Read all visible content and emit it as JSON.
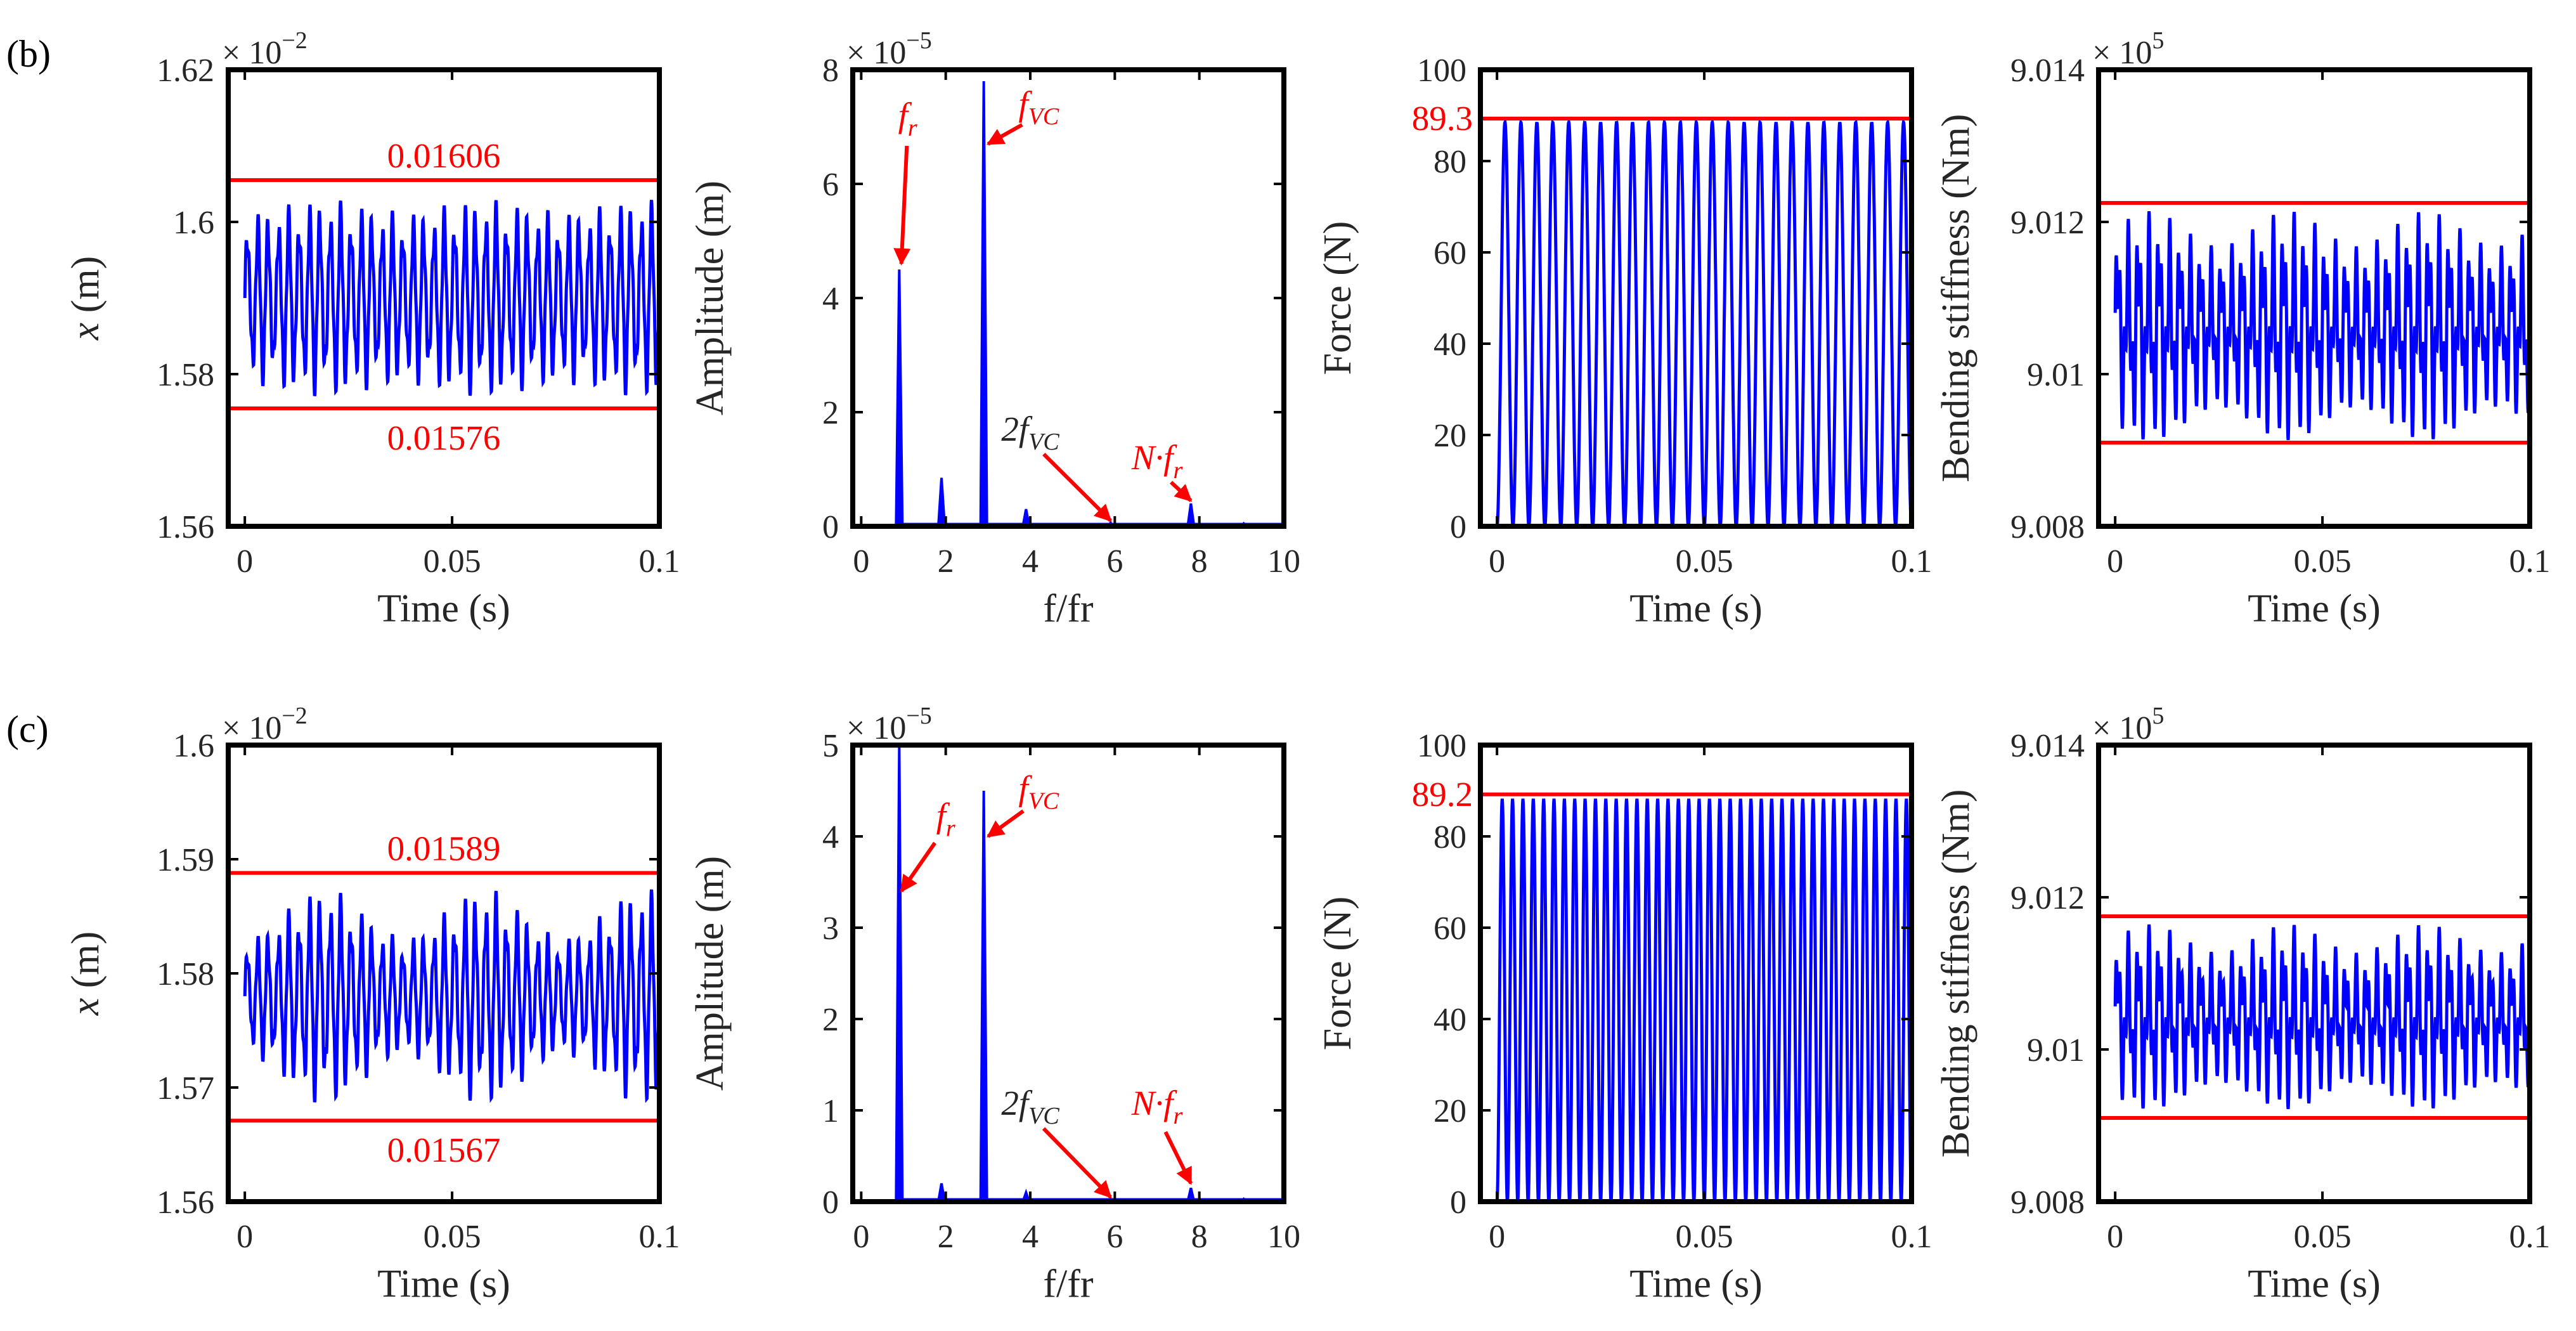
{
  "colors": {
    "signal": "#0000ff",
    "limit": "#ff0000",
    "axis": "#000000",
    "text": "#262626"
  },
  "rows": [
    {
      "label": "(b)"
    },
    {
      "label": "(c)"
    }
  ],
  "chart_data": [
    {
      "id": "b-disp",
      "row": 0,
      "col": 0,
      "type": "line",
      "xlabel": "Time (s)",
      "ylabel_var": "x",
      "ylabel_unit": " (m)",
      "xlim": [
        -0.004,
        0.1
      ],
      "ylim": [
        1.56,
        1.62
      ],
      "xticks": [
        0,
        0.05,
        0.1
      ],
      "xticklabels": [
        "0",
        "0.05",
        "0.1"
      ],
      "yticks": [
        1.56,
        1.58,
        1.6,
        1.62
      ],
      "yticklabels": [
        "1.56",
        "1.58",
        "1.6",
        "1.62"
      ],
      "multiplier": {
        "base": "× 10",
        "exp": "−2"
      },
      "signal": {
        "kind": "disp",
        "base": 1.59,
        "amp": 0.013,
        "envDepth": 0.12,
        "periods": 40,
        "samples": 1800
      },
      "hlines": [
        {
          "y": 1.6055,
          "label": "0.01606",
          "label_pos": "above"
        },
        {
          "y": 1.5755,
          "label": "0.01576",
          "label_pos": "below"
        }
      ]
    },
    {
      "id": "b-spec",
      "row": 0,
      "col": 1,
      "type": "spectrum",
      "xlabel": "f/fr",
      "ylabel": "Amplitude (m)",
      "xlim": [
        -0.2,
        10
      ],
      "ylim": [
        0,
        8
      ],
      "xticks": [
        0,
        2,
        4,
        6,
        8,
        10
      ],
      "xticklabels": [
        "0",
        "2",
        "4",
        "6",
        "8",
        "10"
      ],
      "yticks": [
        0,
        2,
        4,
        6,
        8
      ],
      "yticklabels": [
        "0",
        "2",
        "4",
        "6",
        "8"
      ],
      "multiplier": {
        "base": "× 10",
        "exp": "−5"
      },
      "peaks": [
        {
          "x": 0.9,
          "y": 4.5
        },
        {
          "x": 1.9,
          "y": 0.85
        },
        {
          "x": 2.9,
          "y": 7.8
        },
        {
          "x": 3.9,
          "y": 0.3
        },
        {
          "x": 5.9,
          "y": 0.06
        },
        {
          "x": 7.8,
          "y": 0.4
        },
        {
          "x": 9.05,
          "y": 0.05
        }
      ],
      "annotations": [
        {
          "label": "f",
          "sub": "r",
          "italic": true,
          "text_x": 1.1,
          "text_y": 7.0,
          "head_x": 0.95,
          "head_y": 4.6
        },
        {
          "label": "f",
          "sub": "VC",
          "italic": true,
          "text_x": 4.2,
          "text_y": 7.2,
          "head_x": 3.0,
          "head_y": 6.7
        },
        {
          "label": "2f",
          "sub": "VC",
          "italic": false,
          "text_x": 4.0,
          "text_y": 1.5,
          "head_x": 5.9,
          "head_y": 0.1
        },
        {
          "label": "N·f",
          "sub": "r",
          "italic": true,
          "text_x": 7.0,
          "text_y": 1.0,
          "head_x": 7.8,
          "head_y": 0.45
        }
      ]
    },
    {
      "id": "b-force",
      "row": 0,
      "col": 2,
      "type": "line",
      "xlabel": "Time (s)",
      "ylabel": "Force (N)",
      "xlim": [
        -0.004,
        0.1
      ],
      "ylim": [
        0,
        100
      ],
      "xticks": [
        0,
        0.05,
        0.1
      ],
      "xticklabels": [
        "0",
        "0.05",
        "0.1"
      ],
      "yticks": [
        0,
        20,
        40,
        60,
        80,
        100
      ],
      "yticklabels": [
        "0",
        "20",
        "40",
        "60",
        "80",
        "100"
      ],
      "signal": {
        "kind": "force",
        "peak": 88.5,
        "periods": 26,
        "samples": 1600
      },
      "hlines": [
        {
          "y": 89.3,
          "label": "89.3",
          "label_pos": "left"
        }
      ]
    },
    {
      "id": "b-stiff",
      "row": 0,
      "col": 3,
      "type": "line",
      "xlabel": "Time (s)",
      "ylabel": "Bending stiffness (Nm)",
      "xlim": [
        -0.004,
        0.1
      ],
      "ylim": [
        9.008,
        9.014
      ],
      "xticks": [
        0,
        0.05,
        0.1
      ],
      "xticklabels": [
        "0",
        "0.05",
        "0.1"
      ],
      "yticks": [
        9.008,
        9.01,
        9.012,
        9.014
      ],
      "yticklabels": [
        "9.008",
        "9.01",
        "9.012",
        "9.014"
      ],
      "multiplier": {
        "base": "× 10",
        "exp": "5"
      },
      "signal": {
        "kind": "stiff",
        "base": 9.0106,
        "amp": 0.00155,
        "periods": 40,
        "samples": 1800
      },
      "hlines": [
        {
          "y": 9.01225
        },
        {
          "y": 9.0091
        }
      ]
    },
    {
      "id": "c-disp",
      "row": 1,
      "col": 0,
      "type": "line",
      "xlabel": "Time (s)",
      "ylabel_var": "x",
      "ylabel_unit": " (m)",
      "xlim": [
        -0.004,
        0.1
      ],
      "ylim": [
        1.56,
        1.6
      ],
      "xticks": [
        0,
        0.05,
        0.1
      ],
      "xticklabels": [
        "0",
        "0.05",
        "0.1"
      ],
      "yticks": [
        1.56,
        1.57,
        1.58,
        1.59,
        1.6
      ],
      "yticklabels": [
        "1.56",
        "1.57",
        "1.58",
        "1.59",
        "1.6"
      ],
      "multiplier": {
        "base": "× 10",
        "exp": "−2"
      },
      "signal": {
        "kind": "disp",
        "base": 1.578,
        "amp": 0.0095,
        "envDepth": 0.45,
        "periods": 40,
        "samples": 1800
      },
      "hlines": [
        {
          "y": 1.5888,
          "label": "0.01589",
          "label_pos": "above"
        },
        {
          "y": 1.5671,
          "label": "0.01567",
          "label_pos": "below"
        }
      ]
    },
    {
      "id": "c-spec",
      "row": 1,
      "col": 1,
      "type": "spectrum",
      "xlabel": "f/fr",
      "ylabel": "Amplitude (m)",
      "xlim": [
        -0.2,
        10
      ],
      "ylim": [
        0,
        5
      ],
      "xticks": [
        0,
        2,
        4,
        6,
        8,
        10
      ],
      "xticklabels": [
        "0",
        "2",
        "4",
        "6",
        "8",
        "10"
      ],
      "yticks": [
        0,
        1,
        2,
        3,
        4,
        5
      ],
      "yticklabels": [
        "0",
        "1",
        "2",
        "3",
        "4",
        "5"
      ],
      "multiplier": {
        "base": "× 10",
        "exp": "−5"
      },
      "peaks": [
        {
          "x": 0.9,
          "y": 5.0
        },
        {
          "x": 1.9,
          "y": 0.2
        },
        {
          "x": 2.9,
          "y": 4.5
        },
        {
          "x": 3.9,
          "y": 0.1
        },
        {
          "x": 5.9,
          "y": 0.03
        },
        {
          "x": 7.8,
          "y": 0.15
        },
        {
          "x": 9.05,
          "y": 0.03
        }
      ],
      "annotations": [
        {
          "label": "f",
          "sub": "r",
          "italic": true,
          "text_x": 2.0,
          "text_y": 4.1,
          "head_x": 0.95,
          "head_y": 3.4
        },
        {
          "label": "f",
          "sub": "VC",
          "italic": true,
          "text_x": 4.2,
          "text_y": 4.4,
          "head_x": 3.0,
          "head_y": 4.0
        },
        {
          "label": "2f",
          "sub": "VC",
          "italic": false,
          "text_x": 4.0,
          "text_y": 0.95,
          "head_x": 5.9,
          "head_y": 0.05
        },
        {
          "label": "N·f",
          "sub": "r",
          "italic": true,
          "text_x": 7.0,
          "text_y": 0.95,
          "head_x": 7.8,
          "head_y": 0.2
        }
      ]
    },
    {
      "id": "c-force",
      "row": 1,
      "col": 2,
      "type": "line",
      "xlabel": "Time (s)",
      "ylabel": "Force (N)",
      "xlim": [
        -0.004,
        0.1
      ],
      "ylim": [
        0,
        100
      ],
      "xticks": [
        0,
        0.05,
        0.1
      ],
      "xticklabels": [
        "0",
        "0.05",
        "0.1"
      ],
      "yticks": [
        0,
        20,
        40,
        60,
        80,
        100
      ],
      "yticklabels": [
        "0",
        "20",
        "40",
        "60",
        "80",
        "100"
      ],
      "signal": {
        "kind": "force",
        "peak": 88.0,
        "periods": 40,
        "samples": 2200
      },
      "hlines": [
        {
          "y": 89.2,
          "label": "89.2",
          "label_pos": "left"
        }
      ]
    },
    {
      "id": "c-stiff",
      "row": 1,
      "col": 3,
      "type": "line",
      "xlabel": "Time (s)",
      "ylabel": "Bending stiffness (Nm)",
      "xlim": [
        -0.004,
        0.1
      ],
      "ylim": [
        9.008,
        9.014
      ],
      "xticks": [
        0,
        0.05,
        0.1
      ],
      "xticklabels": [
        "0",
        "0.05",
        "0.1"
      ],
      "yticks": [
        9.008,
        9.01,
        9.012,
        9.014
      ],
      "yticklabels": [
        "9.008",
        "9.01",
        "9.012",
        "9.014"
      ],
      "multiplier": {
        "base": "× 10",
        "exp": "5"
      },
      "signal": {
        "kind": "stiff",
        "base": 9.0104,
        "amp": 0.00125,
        "periods": 40,
        "samples": 1800
      },
      "hlines": [
        {
          "y": 9.01175
        },
        {
          "y": 9.0091
        }
      ]
    }
  ]
}
